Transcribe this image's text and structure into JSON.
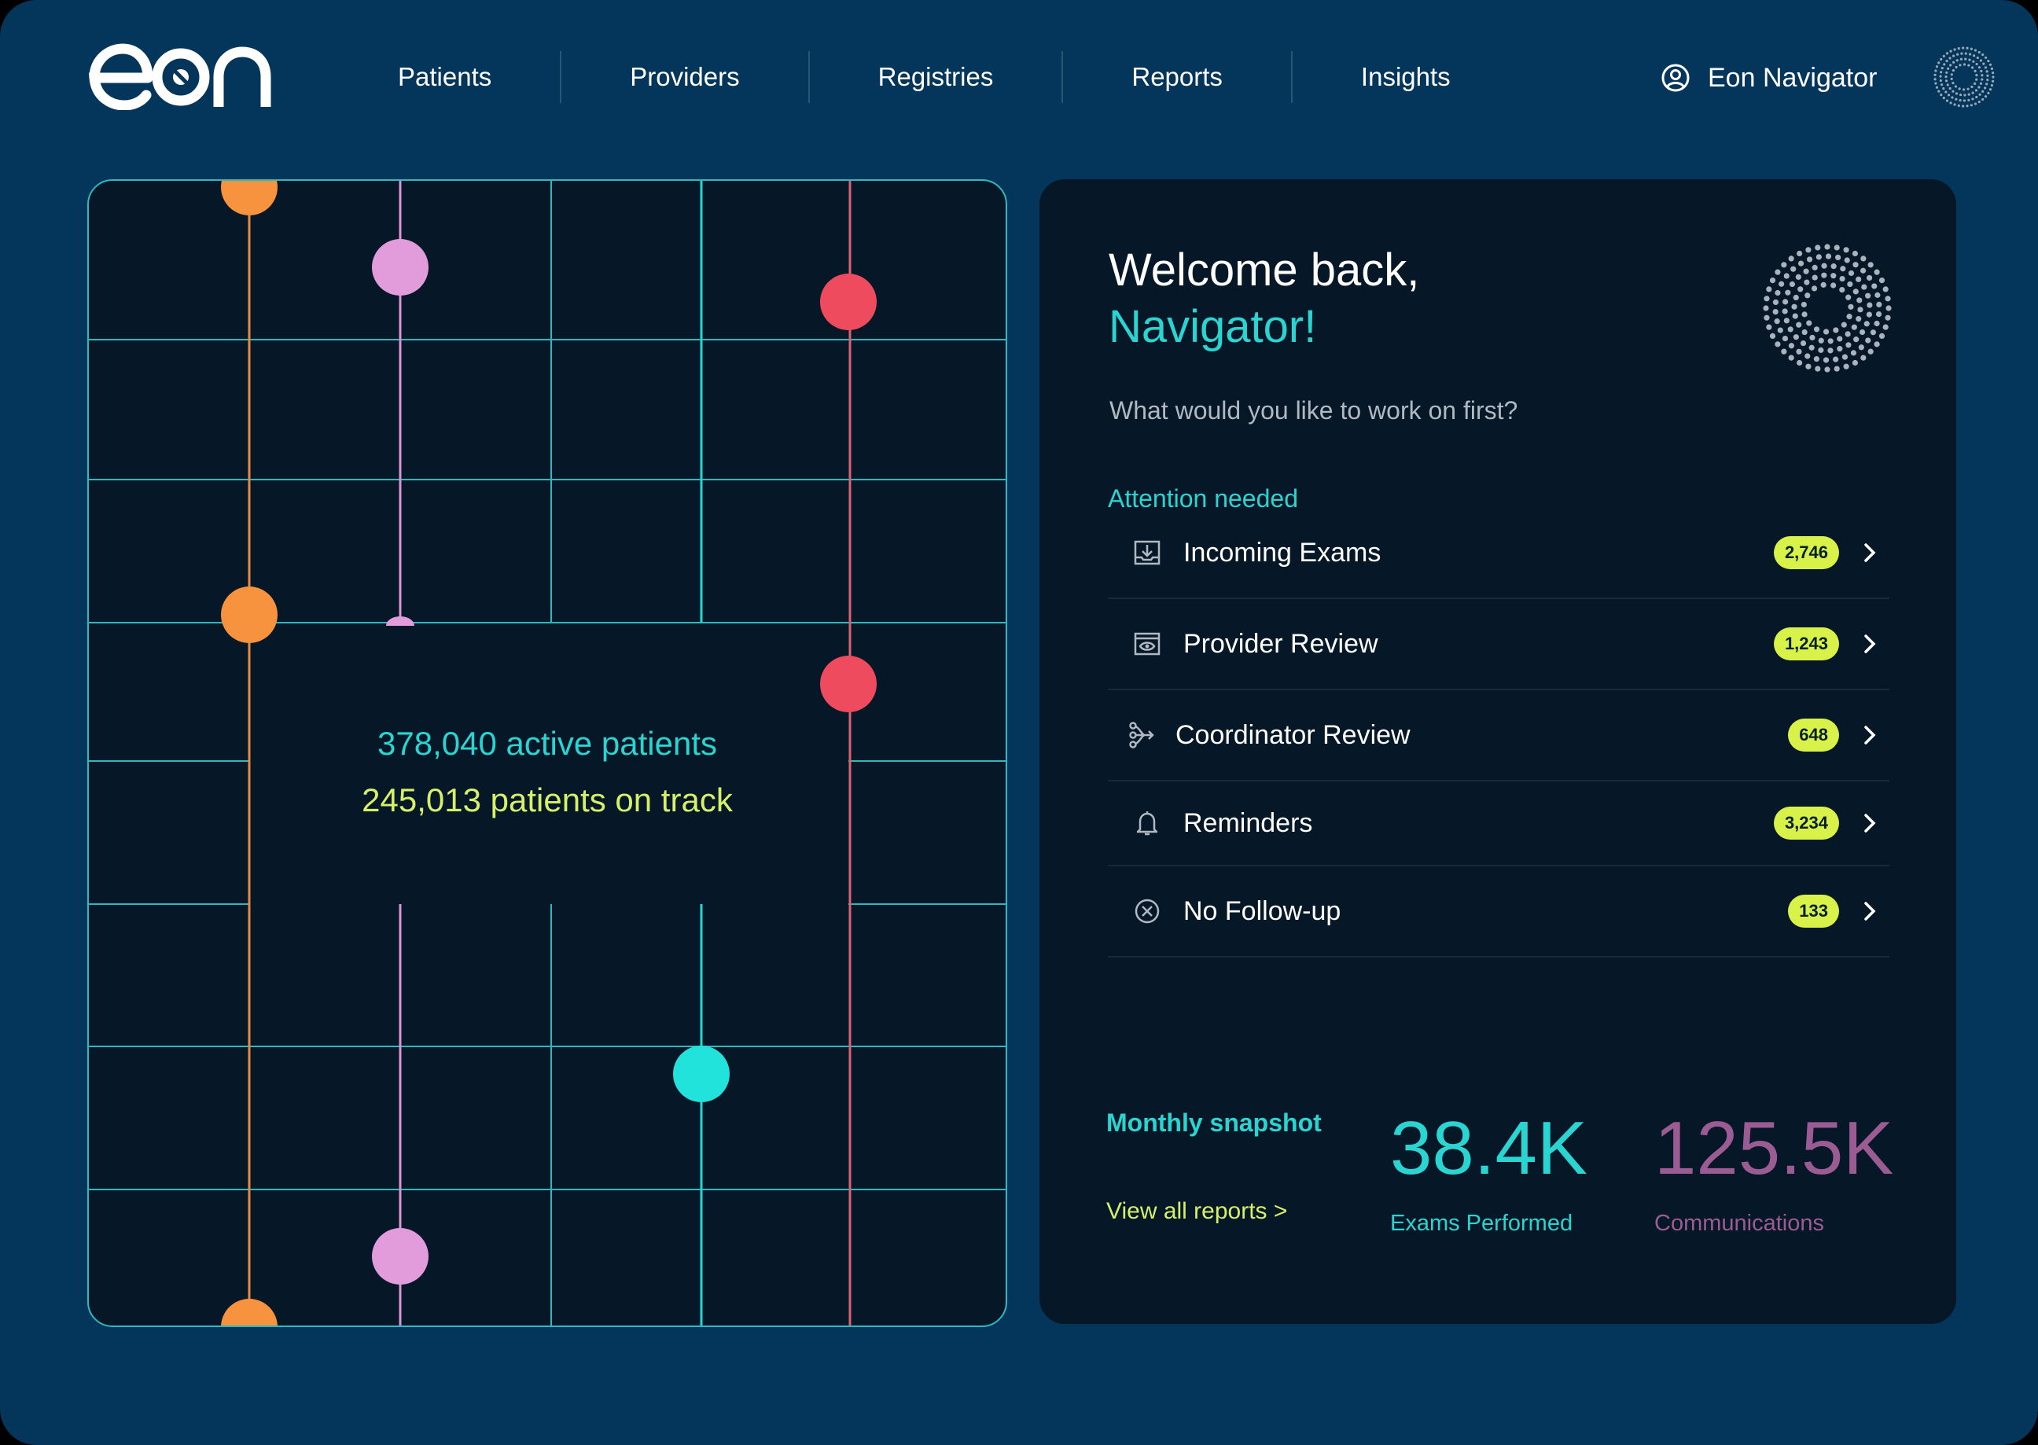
{
  "brand": {
    "logo_text": "eon"
  },
  "nav": {
    "items": [
      {
        "label": "Patients"
      },
      {
        "label": "Providers"
      },
      {
        "label": "Registries"
      },
      {
        "label": "Reports"
      },
      {
        "label": "Insights"
      }
    ]
  },
  "user": {
    "name": "Eon Navigator",
    "icon": "user-circle-icon"
  },
  "overview": {
    "active_patients": "378,040 active patients",
    "on_track": "245,013 patients on track"
  },
  "welcome": {
    "line1": "Welcome back,",
    "name": "Navigator!",
    "prompt": "What would you like to work on first?"
  },
  "attention": {
    "title": "Attention needed",
    "items": [
      {
        "label": "Incoming Exams",
        "count": "2,746",
        "icon": "inbox-download-icon"
      },
      {
        "label": "Provider Review",
        "count": "1,243",
        "icon": "eye-window-icon"
      },
      {
        "label": "Coordinator Review",
        "count": "648",
        "icon": "branch-arrow-icon"
      },
      {
        "label": "Reminders",
        "count": "3,234",
        "icon": "bell-icon"
      },
      {
        "label": "No Follow-up",
        "count": "133",
        "icon": "x-circle-icon"
      }
    ]
  },
  "snapshot": {
    "title": "Monthly snapshot",
    "view_all": "View all reports  >",
    "metrics": [
      {
        "value": "38.4K",
        "label": "Exams Performed",
        "color": "#2ad4d0"
      },
      {
        "value": "125.5K",
        "label": "Communications",
        "color": "#9a5c93"
      }
    ]
  },
  "colors": {
    "background": "#04355a",
    "card": "#061827",
    "accent_teal": "#2ad4d0",
    "accent_lime": "#d6f06a",
    "badge": "#d9f24a",
    "dot_orange": "#f7923f",
    "dot_pink": "#e29bdb",
    "dot_red": "#ef4b5e",
    "dot_cyan": "#22e3db"
  }
}
